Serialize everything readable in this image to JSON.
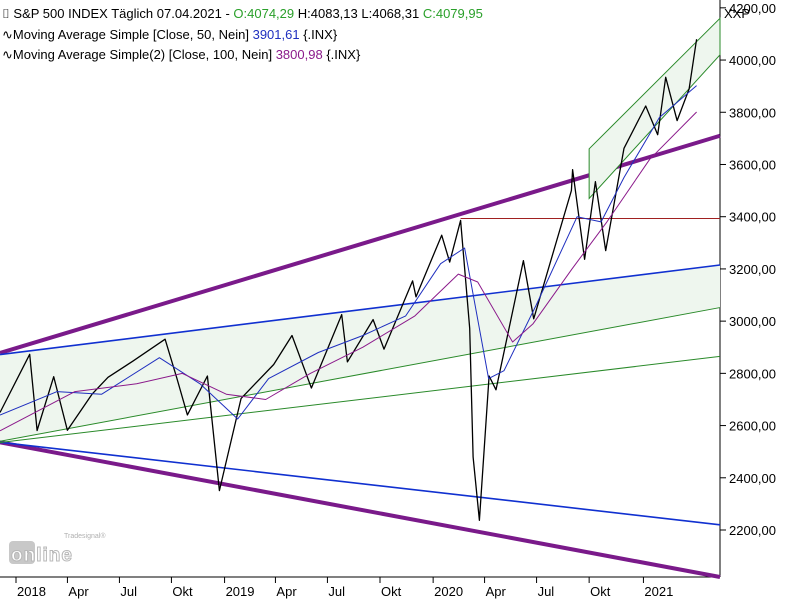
{
  "header": {
    "line1": {
      "name": "S&P 500 INDEX Täglich",
      "date": "07.04.2021",
      "open": "O:4074,29",
      "high": "H:4083,13",
      "low": "L:4068,31",
      "close": "C:4079,95"
    },
    "line2": {
      "label": "Moving Average Simple [Close, 50, Nein]",
      "value": "3901,61",
      "symbol": "{.INX}"
    },
    "line3": {
      "label": "Moving Average Simple(2) [Close, 100, Nein]",
      "value": "3800,98",
      "symbol": "{.INX}"
    }
  },
  "watermark": {
    "small": "Tradesignal®",
    "large": "online"
  },
  "colors": {
    "price": "#000000",
    "ma50": "#1f2fbf",
    "ma100": "#8b1a8b",
    "trend_purple": "#7a1a8a",
    "trend_blue": "#1030d0",
    "trend_green": "#2a8a2a",
    "channel_fill": "#eef6ee",
    "horizontal_red": "#a02020",
    "open_green": "#2aa02a",
    "ma50_value": "#1f2fbf",
    "ma100_value": "#8b1a8b"
  },
  "chart_data": {
    "type": "line",
    "title": "S&P 500 INDEX Täglich",
    "y_axis_label": "XXP",
    "y_ticks": [
      "4200,00",
      "4000,00",
      "3800,00",
      "3600,00",
      "3400,00",
      "3200,00",
      "3000,00",
      "2800,00",
      "2600,00",
      "2400,00",
      "2200,00"
    ],
    "y_tick_values": [
      4200,
      4000,
      3800,
      3600,
      3400,
      3200,
      3000,
      2800,
      2600,
      2400,
      2200
    ],
    "ylim": [
      2020,
      4230
    ],
    "x_ticks": [
      "2018",
      "Apr",
      "Jul",
      "Okt",
      "2019",
      "Apr",
      "Jul",
      "Okt",
      "2020",
      "Apr",
      "Jul",
      "Okt",
      "2021"
    ],
    "x_tick_dates": [
      "2018-01-02",
      "2018-04-02",
      "2018-07-02",
      "2018-10-01",
      "2019-01-02",
      "2019-04-01",
      "2019-07-01",
      "2019-10-01",
      "2020-01-02",
      "2020-04-01",
      "2020-07-01",
      "2020-10-01",
      "2021-01-04"
    ],
    "xlim": [
      "2017-12-05",
      "2021-05-18"
    ],
    "grid": false,
    "series": [
      {
        "name": "S&P 500 INDEX",
        "x": [
          "2017-12-05",
          "2018-01-26",
          "2018-02-08",
          "2018-03-09",
          "2018-04-02",
          "2018-05-15",
          "2018-06-12",
          "2018-07-25",
          "2018-09-20",
          "2018-10-10",
          "2018-10-29",
          "2018-12-03",
          "2018-12-24",
          "2019-01-31",
          "2019-03-29",
          "2019-04-30",
          "2019-06-03",
          "2019-07-26",
          "2019-08-05",
          "2019-09-19",
          "2019-10-08",
          "2019-11-27",
          "2019-12-03",
          "2020-01-17",
          "2020-01-31",
          "2020-02-19",
          "2020-03-06",
          "2020-03-12",
          "2020-03-23",
          "2020-04-09",
          "2020-04-21",
          "2020-06-08",
          "2020-06-26",
          "2020-08-31",
          "2020-09-02",
          "2020-09-23",
          "2020-10-12",
          "2020-10-30",
          "2020-12-01",
          "2021-01-08",
          "2021-01-29",
          "2021-02-12",
          "2021-03-04",
          "2021-03-25",
          "2021-04-07"
        ],
        "values": [
          2650,
          2873,
          2581,
          2787,
          2582,
          2720,
          2785,
          2846,
          2931,
          2785,
          2641,
          2790,
          2351,
          2704,
          2834,
          2945,
          2744,
          3025,
          2844,
          3006,
          2893,
          3154,
          3093,
          3329,
          3226,
          3386,
          2972,
          2480,
          2237,
          2790,
          2737,
          3232,
          3009,
          3500,
          3580,
          3237,
          3534,
          3270,
          3662,
          3824,
          3714,
          3934,
          3768,
          3889,
          4080
        ]
      },
      {
        "name": "Moving Average Simple 50",
        "x": [
          "2017-12-05",
          "2018-03-15",
          "2018-06-01",
          "2018-09-10",
          "2018-11-20",
          "2019-01-25",
          "2019-03-20",
          "2019-06-15",
          "2019-09-01",
          "2019-11-15",
          "2020-01-15",
          "2020-02-26",
          "2020-04-08",
          "2020-05-05",
          "2020-06-30",
          "2020-09-10",
          "2020-10-22",
          "2020-12-01",
          "2021-02-01",
          "2021-04-07"
        ],
        "values": [
          2640,
          2730,
          2720,
          2860,
          2760,
          2625,
          2780,
          2880,
          2945,
          3020,
          3220,
          3280,
          2780,
          2810,
          3060,
          3400,
          3380,
          3550,
          3780,
          3902
        ]
      },
      {
        "name": "Moving Average Simple 100",
        "x": [
          "2017-12-05",
          "2018-04-15",
          "2018-08-01",
          "2018-10-20",
          "2019-01-05",
          "2019-03-15",
          "2019-06-01",
          "2019-09-01",
          "2019-12-01",
          "2020-02-15",
          "2020-03-20",
          "2020-05-20",
          "2020-06-25",
          "2020-09-01",
          "2020-11-01",
          "2021-01-15",
          "2021-04-07"
        ],
        "values": [
          2580,
          2730,
          2760,
          2800,
          2720,
          2700,
          2800,
          2900,
          3020,
          3180,
          3150,
          2920,
          2990,
          3200,
          3380,
          3620,
          3801
        ]
      }
    ],
    "annotations": [
      {
        "type": "trendline",
        "name": "upper-purple-resistance",
        "color": "purple",
        "from": [
          "2017-12-05",
          2878
        ],
        "to": [
          "2021-05-18",
          3710
        ]
      },
      {
        "type": "trendline",
        "name": "lower-purple-support",
        "color": "purple",
        "from": [
          "2017-12-05",
          2536
        ],
        "to": [
          "2021-05-18",
          2020
        ]
      },
      {
        "type": "trendline",
        "name": "upper-blue",
        "color": "blue",
        "from": [
          "2017-12-05",
          2872
        ],
        "to": [
          "2021-05-18",
          3215
        ]
      },
      {
        "type": "trendline",
        "name": "lower-blue",
        "color": "blue",
        "from": [
          "2017-12-05",
          2536
        ],
        "to": [
          "2021-05-18",
          2220
        ]
      },
      {
        "type": "trendline",
        "name": "mid-green",
        "color": "green",
        "from": [
          "2017-12-05",
          2540
        ],
        "to": [
          "2021-05-18",
          3052
        ]
      },
      {
        "type": "trendline",
        "name": "lower-green",
        "color": "green",
        "from": [
          "2017-12-05",
          2535
        ],
        "to": [
          "2021-05-18",
          2865
        ]
      },
      {
        "type": "horizontal",
        "name": "red-horizontal",
        "color": "red",
        "from": [
          "2020-02-19",
          3393
        ],
        "to": [
          "2021-05-18",
          3393
        ]
      },
      {
        "type": "channel",
        "name": "green-up-channel",
        "color": "green",
        "upper_from": [
          "2020-10-01",
          3660
        ],
        "upper_to": [
          "2021-05-18",
          4160
        ],
        "lower_from": [
          "2020-10-01",
          3470
        ],
        "lower_to": [
          "2021-05-18",
          4020
        ]
      }
    ]
  }
}
